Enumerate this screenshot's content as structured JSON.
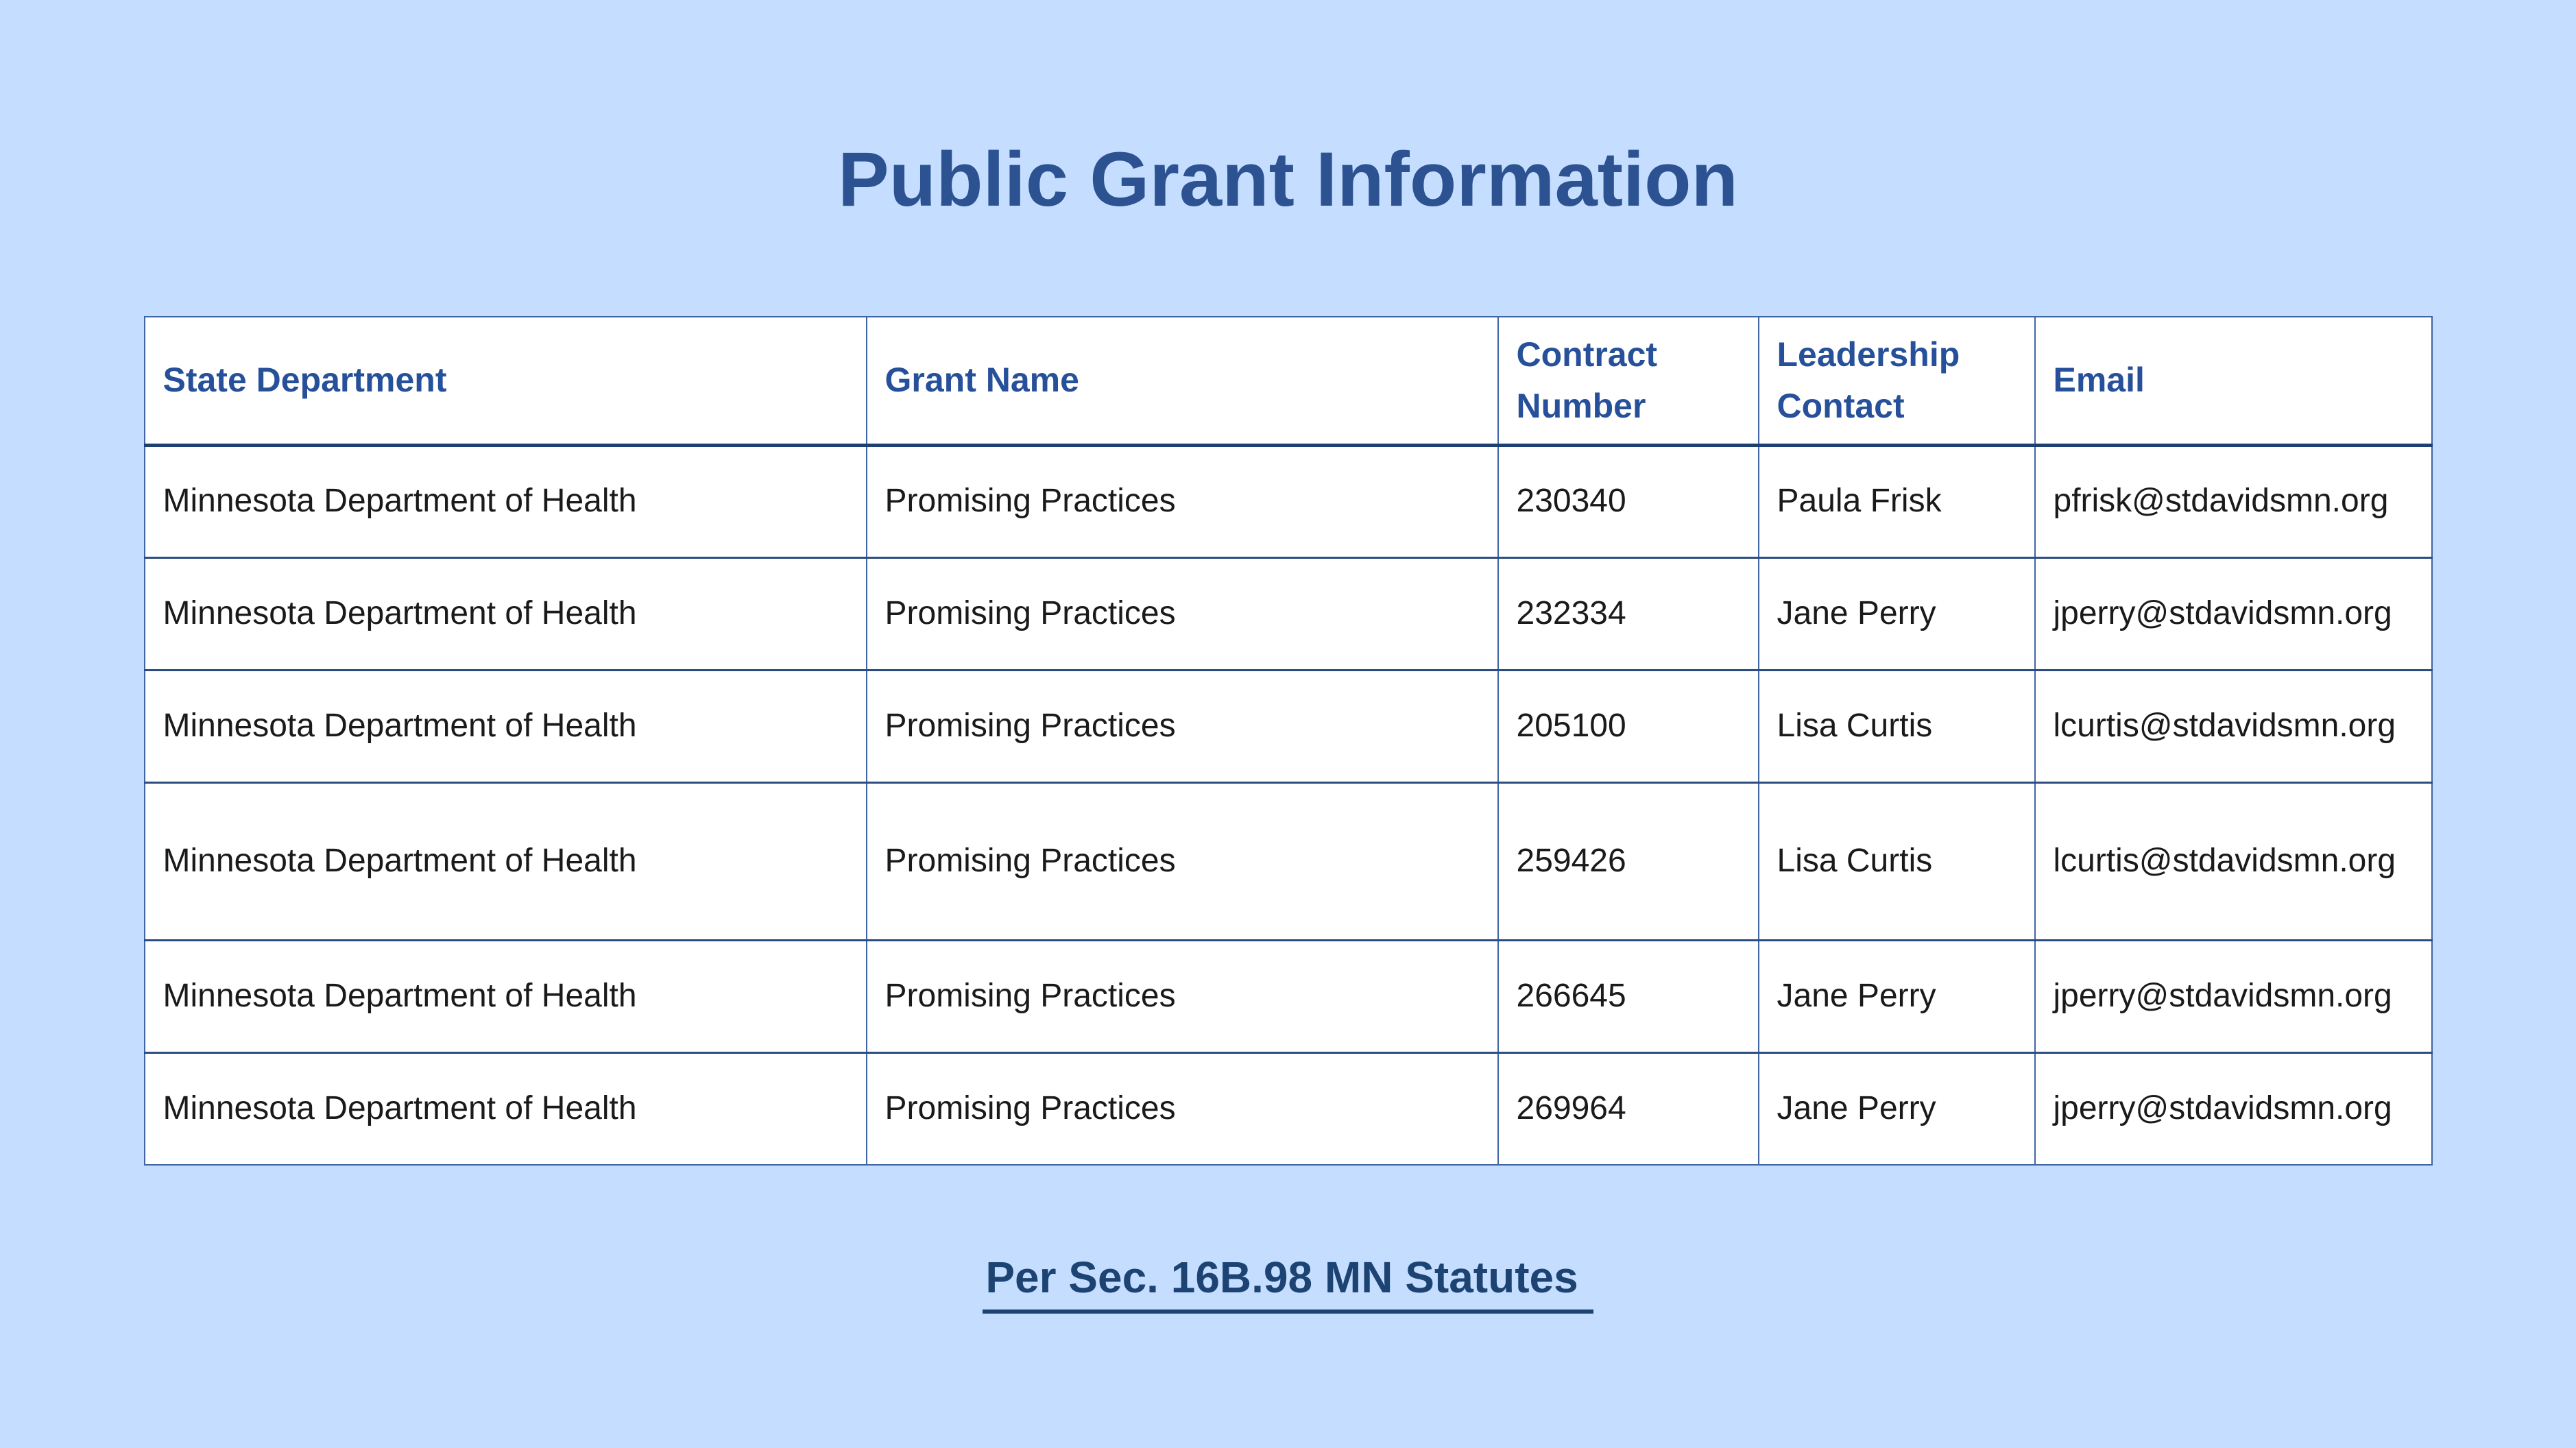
{
  "page": {
    "title": "Public Grant Information",
    "footer_link_label": "Per Sec. 16B.98 MN Statutes"
  },
  "table": {
    "headers": {
      "state_department": "State Department",
      "grant_name": "Grant Name",
      "contract_number": "Contract Number",
      "leadership_contact": "Leadership Contact",
      "email": "Email"
    },
    "rows": [
      {
        "state_department": "Minnesota Department of Health",
        "grant_name": "Promising Practices",
        "contract_number": "230340",
        "leadership_contact": "Paula Frisk",
        "email": "pfrisk@stdavidsmn.org"
      },
      {
        "state_department": "Minnesota Department of Health",
        "grant_name": "Promising Practices",
        "contract_number": "232334",
        "leadership_contact": "Jane Perry",
        "email": "jperry@stdavidsmn.org"
      },
      {
        "state_department": "Minnesota Department of Health",
        "grant_name": "Promising Practices",
        "contract_number": "205100",
        "leadership_contact": "Lisa Curtis",
        "email": "lcurtis@stdavidsmn.org"
      },
      {
        "state_department": "Minnesota Department of Health",
        "grant_name": "Promising Practices",
        "contract_number": "259426",
        "leadership_contact": "Lisa Curtis",
        "email": "lcurtis@stdavidsmn.org"
      },
      {
        "state_department": "Minnesota Department of Health",
        "grant_name": "Promising Practices",
        "contract_number": "266645",
        "leadership_contact": "Jane Perry",
        "email": "jperry@stdavidsmn.org"
      },
      {
        "state_department": "Minnesota Department of Health",
        "grant_name": "Promising Practices",
        "contract_number": "269964",
        "leadership_contact": "Jane Perry",
        "email": "jperry@stdavidsmn.org"
      }
    ]
  },
  "colors": {
    "background": "#c5deff",
    "title_blue": "#2d5291",
    "header_blue": "#27509a",
    "border_outer": "#3e66a3",
    "border_header_bottom": "#1d4070",
    "border_row": "#2b4d80",
    "link_blue": "#1d4373",
    "cell_background": "#ffffff",
    "body_text": "#1a1a1a"
  }
}
